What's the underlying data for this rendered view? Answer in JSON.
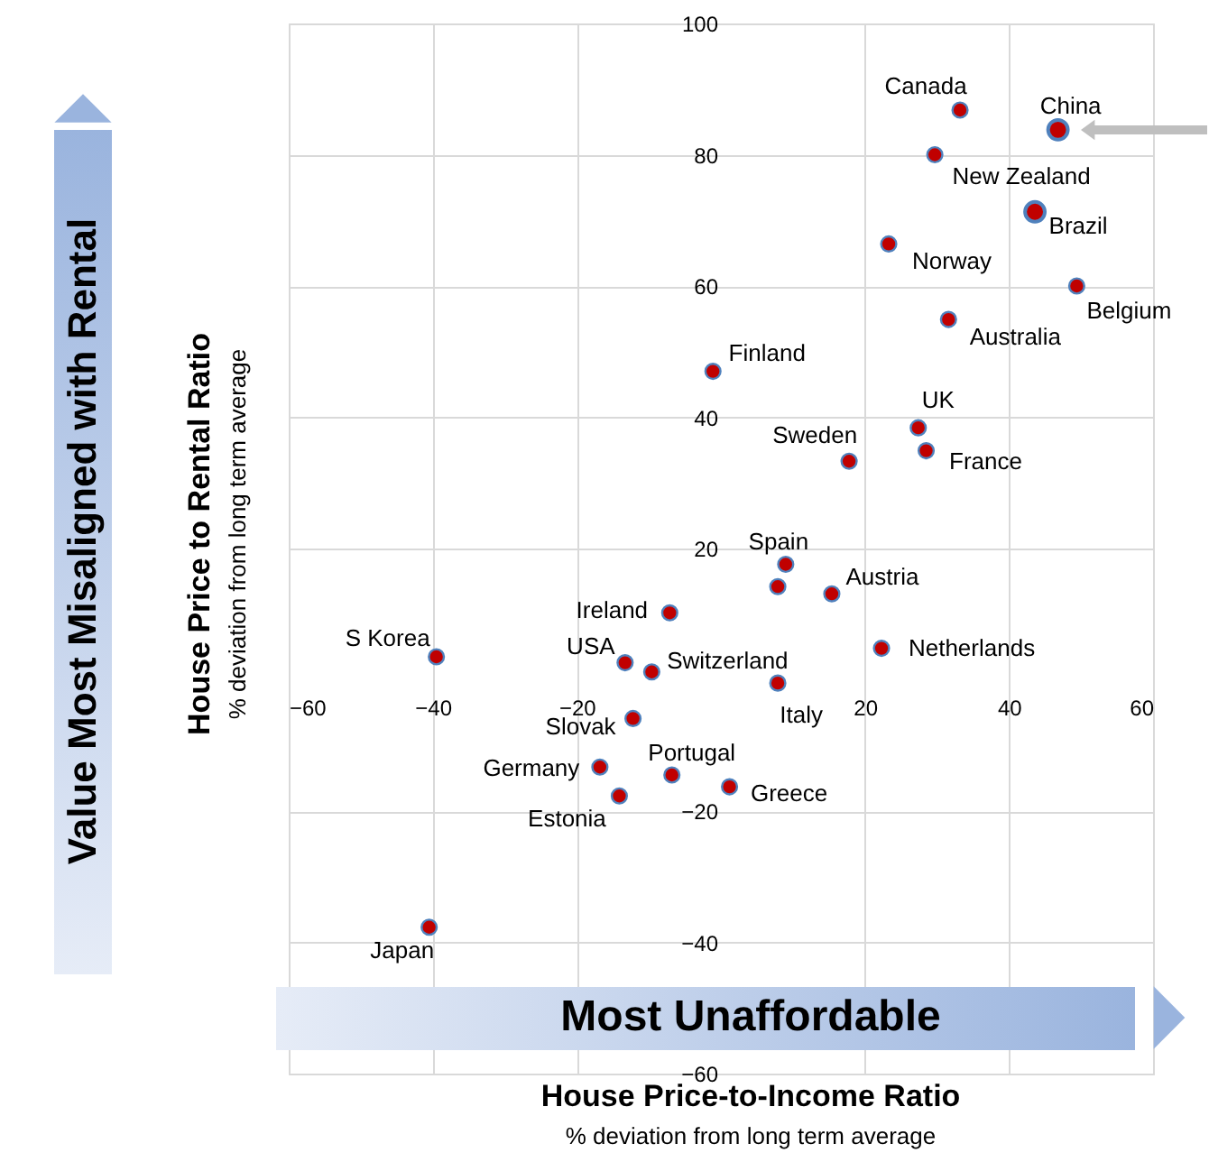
{
  "chart_data": {
    "type": "scatter",
    "xlabel": "House Price-to-Income Ratio",
    "ylabel": "House Price to Rental Ratio",
    "xlim": [
      -60,
      60
    ],
    "xticks": [
      -60,
      -40,
      -20,
      20,
      40,
      60
    ],
    "ylim": [
      -60,
      100
    ],
    "yticks": [
      -60,
      -40,
      -20,
      20,
      40,
      60,
      80,
      100
    ],
    "grid": true,
    "marker": "circle",
    "series": [
      {
        "color": "#c00000",
        "x": [
          33.2,
          29.7,
          23.3,
          49.4,
          31.6,
          -1.1,
          27.4,
          17.8,
          28.5,
          9.0,
          7.9,
          15.4,
          -7.1,
          -39.5,
          -13.3,
          -9.6,
          7.9,
          22.3,
          -12.2,
          -16.8,
          -6.8,
          -14.1,
          1.2,
          -40.5
        ],
        "values": [
          86.8,
          80.0,
          66.4,
          60.0,
          54.9,
          47.0,
          38.4,
          33.3,
          34.9,
          17.6,
          14.2,
          13.1,
          10.2,
          3.5,
          2.6,
          1.2,
          -0.5,
          4.8,
          -5.9,
          -13.3,
          -14.5,
          -17.7,
          -16.3,
          -37.7
        ]
      },
      {
        "color": "#c00000",
        "x": [
          46.8,
          43.6
        ],
        "values": [
          83.8,
          71.3
        ]
      }
    ],
    "annotations": [
      {
        "text": "Canada",
        "x": 33.2,
        "y": 86.8
      },
      {
        "text": "New Zealand",
        "x": 29.7,
        "y": 80.0
      },
      {
        "text": "Norway",
        "x": 23.3,
        "y": 66.4
      },
      {
        "text": "Belgium",
        "x": 49.4,
        "y": 60.0
      },
      {
        "text": "Australia",
        "x": 31.6,
        "y": 54.9
      },
      {
        "text": "Finland",
        "x": -1.1,
        "y": 47.0
      },
      {
        "text": "UK",
        "x": 27.4,
        "y": 38.4
      },
      {
        "text": "Sweden",
        "x": 17.8,
        "y": 33.3
      },
      {
        "text": "France",
        "x": 28.5,
        "y": 34.9
      },
      {
        "text": "Spain",
        "x": 9.0,
        "y": 17.6
      },
      {
        "text": "Austria",
        "x": 15.4,
        "y": 13.1
      },
      {
        "text": "Ireland",
        "x": -7.1,
        "y": 10.2
      },
      {
        "text": "S Korea",
        "x": -39.5,
        "y": 3.5
      },
      {
        "text": "USA",
        "x": -13.3,
        "y": 2.6
      },
      {
        "text": "Switzerland",
        "x": -9.6,
        "y": 1.2
      },
      {
        "text": "Italy",
        "x": 7.9,
        "y": -0.5
      },
      {
        "text": "Netherlands",
        "x": 22.3,
        "y": 4.8
      },
      {
        "text": "Slovak",
        "x": -12.2,
        "y": -5.9
      },
      {
        "text": "Germany",
        "x": -16.8,
        "y": -13.3
      },
      {
        "text": "Portugal",
        "x": -6.8,
        "y": -14.5
      },
      {
        "text": "Estonia",
        "x": -14.1,
        "y": -17.7
      },
      {
        "text": "Greece",
        "x": 1.2,
        "y": -16.3
      },
      {
        "text": "Japan",
        "x": -40.5,
        "y": -37.7
      },
      {
        "text": "China",
        "x": 46.8,
        "y": 83.8
      },
      {
        "text": "Brazil",
        "x": 43.6,
        "y": 71.3
      },
      "% deviation from long term average",
      "% deviation from long term average",
      "Value Most Misaligned with Rental",
      "Most Unaffordable"
    ]
  }
}
